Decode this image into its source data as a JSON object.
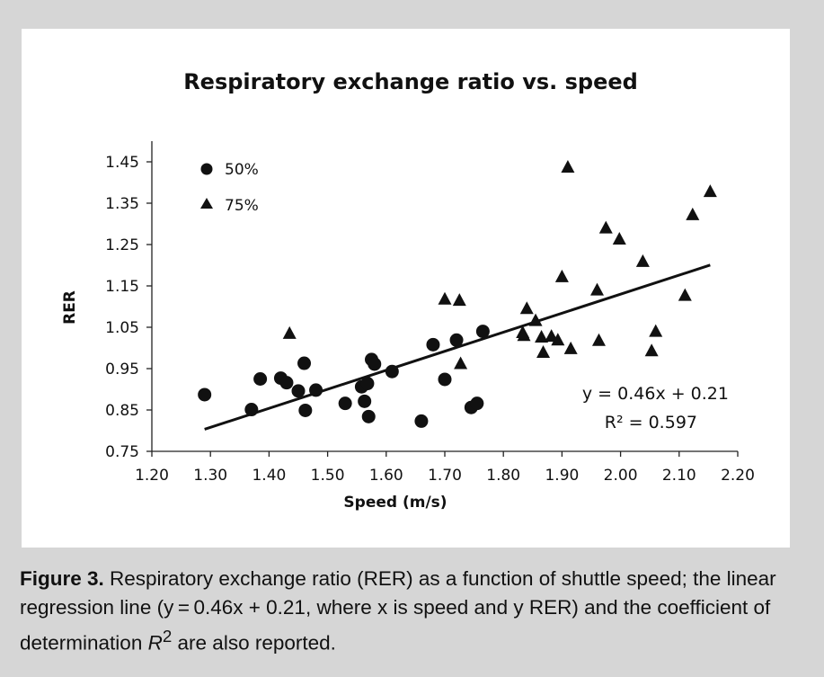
{
  "chart_data": {
    "type": "scatter",
    "title": "Respiratory exchange ratio vs. speed",
    "xlabel": "Speed (m/s)",
    "ylabel": "RER",
    "xlim": [
      1.2,
      2.2
    ],
    "ylim": [
      0.75,
      1.5
    ],
    "x_ticks": [
      "1.20",
      "1.30",
      "1.40",
      "1.50",
      "1.60",
      "1.70",
      "1.80",
      "1.90",
      "2.00",
      "2.10",
      "2.20"
    ],
    "y_ticks": [
      "0.75",
      "0.85",
      "0.95",
      "1.05",
      "1.15",
      "1.25",
      "1.35",
      "1.45"
    ],
    "grid": false,
    "legend_position": "top-left",
    "series": [
      {
        "name": "50%",
        "marker": "circle",
        "color": "#111111",
        "points": [
          [
            1.29,
            0.887
          ],
          [
            1.37,
            0.851
          ],
          [
            1.385,
            0.925
          ],
          [
            1.42,
            0.927
          ],
          [
            1.43,
            0.916
          ],
          [
            1.45,
            0.896
          ],
          [
            1.46,
            0.963
          ],
          [
            1.462,
            0.849
          ],
          [
            1.48,
            0.898
          ],
          [
            1.53,
            0.866
          ],
          [
            1.558,
            0.906
          ],
          [
            1.563,
            0.871
          ],
          [
            1.568,
            0.914
          ],
          [
            1.57,
            0.834
          ],
          [
            1.575,
            0.972
          ],
          [
            1.58,
            0.961
          ],
          [
            1.61,
            0.943
          ],
          [
            1.66,
            0.823
          ],
          [
            1.68,
            1.008
          ],
          [
            1.7,
            0.924
          ],
          [
            1.72,
            1.019
          ],
          [
            1.745,
            0.856
          ],
          [
            1.755,
            0.866
          ],
          [
            1.765,
            1.04
          ]
        ]
      },
      {
        "name": "75%",
        "marker": "triangle",
        "color": "#111111",
        "points": [
          [
            1.435,
            1.035
          ],
          [
            1.7,
            1.118
          ],
          [
            1.725,
            1.115
          ],
          [
            1.727,
            0.962
          ],
          [
            1.833,
            1.037
          ],
          [
            1.835,
            1.03
          ],
          [
            1.84,
            1.095
          ],
          [
            1.855,
            1.066
          ],
          [
            1.865,
            1.026
          ],
          [
            1.868,
            0.989
          ],
          [
            1.882,
            1.028
          ],
          [
            1.893,
            1.019
          ],
          [
            1.9,
            1.172
          ],
          [
            1.91,
            1.437
          ],
          [
            1.915,
            0.998
          ],
          [
            1.96,
            1.14
          ],
          [
            1.963,
            1.018
          ],
          [
            1.975,
            1.29
          ],
          [
            1.998,
            1.263
          ],
          [
            2.038,
            1.209
          ],
          [
            2.053,
            0.993
          ],
          [
            2.06,
            1.04
          ],
          [
            2.11,
            1.127
          ],
          [
            2.123,
            1.322
          ],
          [
            2.153,
            1.378
          ]
        ]
      }
    ],
    "trendline": {
      "slope": 0.46,
      "intercept": 0.21,
      "x_range": [
        1.29,
        2.153
      ],
      "equation_label": "y = 0.46x + 0.21",
      "r2_label": "R² = 0.597"
    }
  },
  "caption": {
    "label": "Figure 3.",
    "text": " Respiratory exchange ratio (RER) as a function of shuttle speed; the linear regression line (y = 0.46x + 0.21, where x is speed and y RER) and the coefficient of determination ",
    "r_symbol": "R",
    "sup": "2",
    "tail": " are also reported."
  }
}
